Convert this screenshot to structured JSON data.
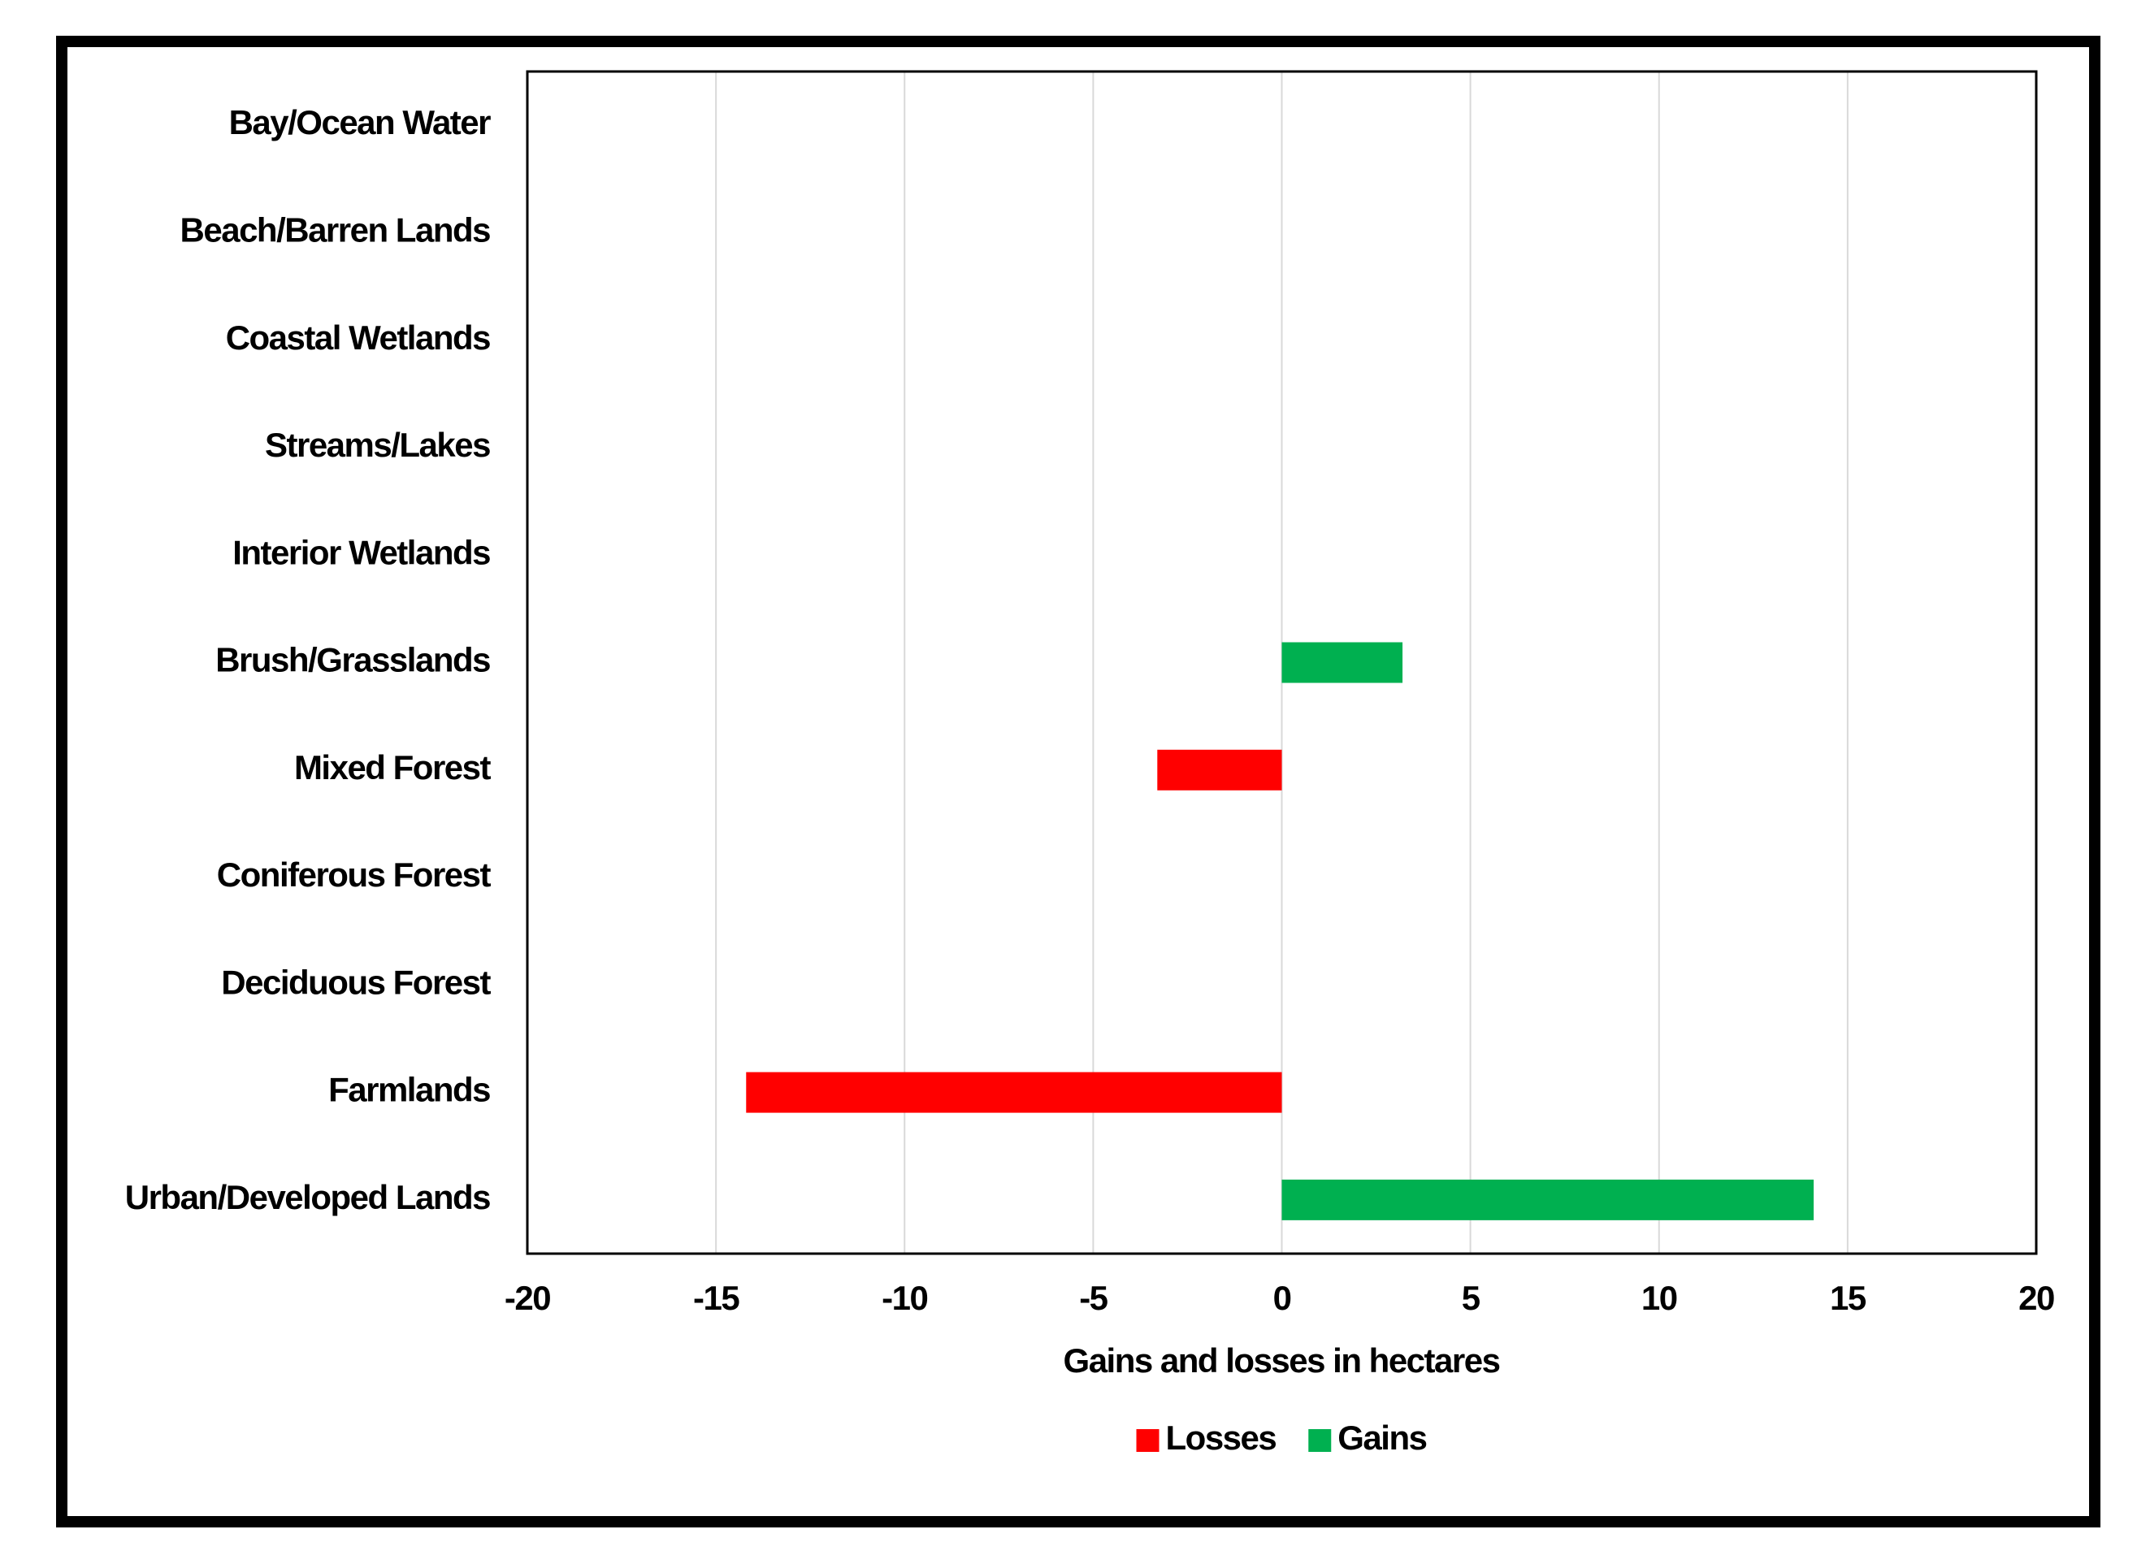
{
  "chart_data": {
    "type": "hbar",
    "x_label": "Gains and losses in hectares",
    "categories": [
      "Bay/Ocean Water",
      "Beach/Barren Lands",
      "Coastal Wetlands",
      "Streams/Lakes",
      "Interior Wetlands",
      "Brush/Grasslands",
      "Mixed Forest",
      "Coniferous Forest",
      "Deciduous Forest",
      "Farmlands",
      "Urban/Developed Lands"
    ],
    "series": [
      {
        "name": "Losses",
        "color": "#ff0000",
        "values": [
          null,
          null,
          null,
          null,
          null,
          null,
          -3.3,
          null,
          null,
          -14.2,
          null
        ]
      },
      {
        "name": "Gains",
        "color": "#00b050",
        "values": [
          null,
          null,
          null,
          null,
          null,
          3.2,
          null,
          null,
          null,
          null,
          14.1
        ]
      }
    ],
    "xlim": [
      -20,
      20
    ],
    "xticks": [
      -20,
      -15,
      -10,
      -5,
      0,
      5,
      10,
      15,
      20
    ],
    "grid": true,
    "legend": "bottom"
  }
}
